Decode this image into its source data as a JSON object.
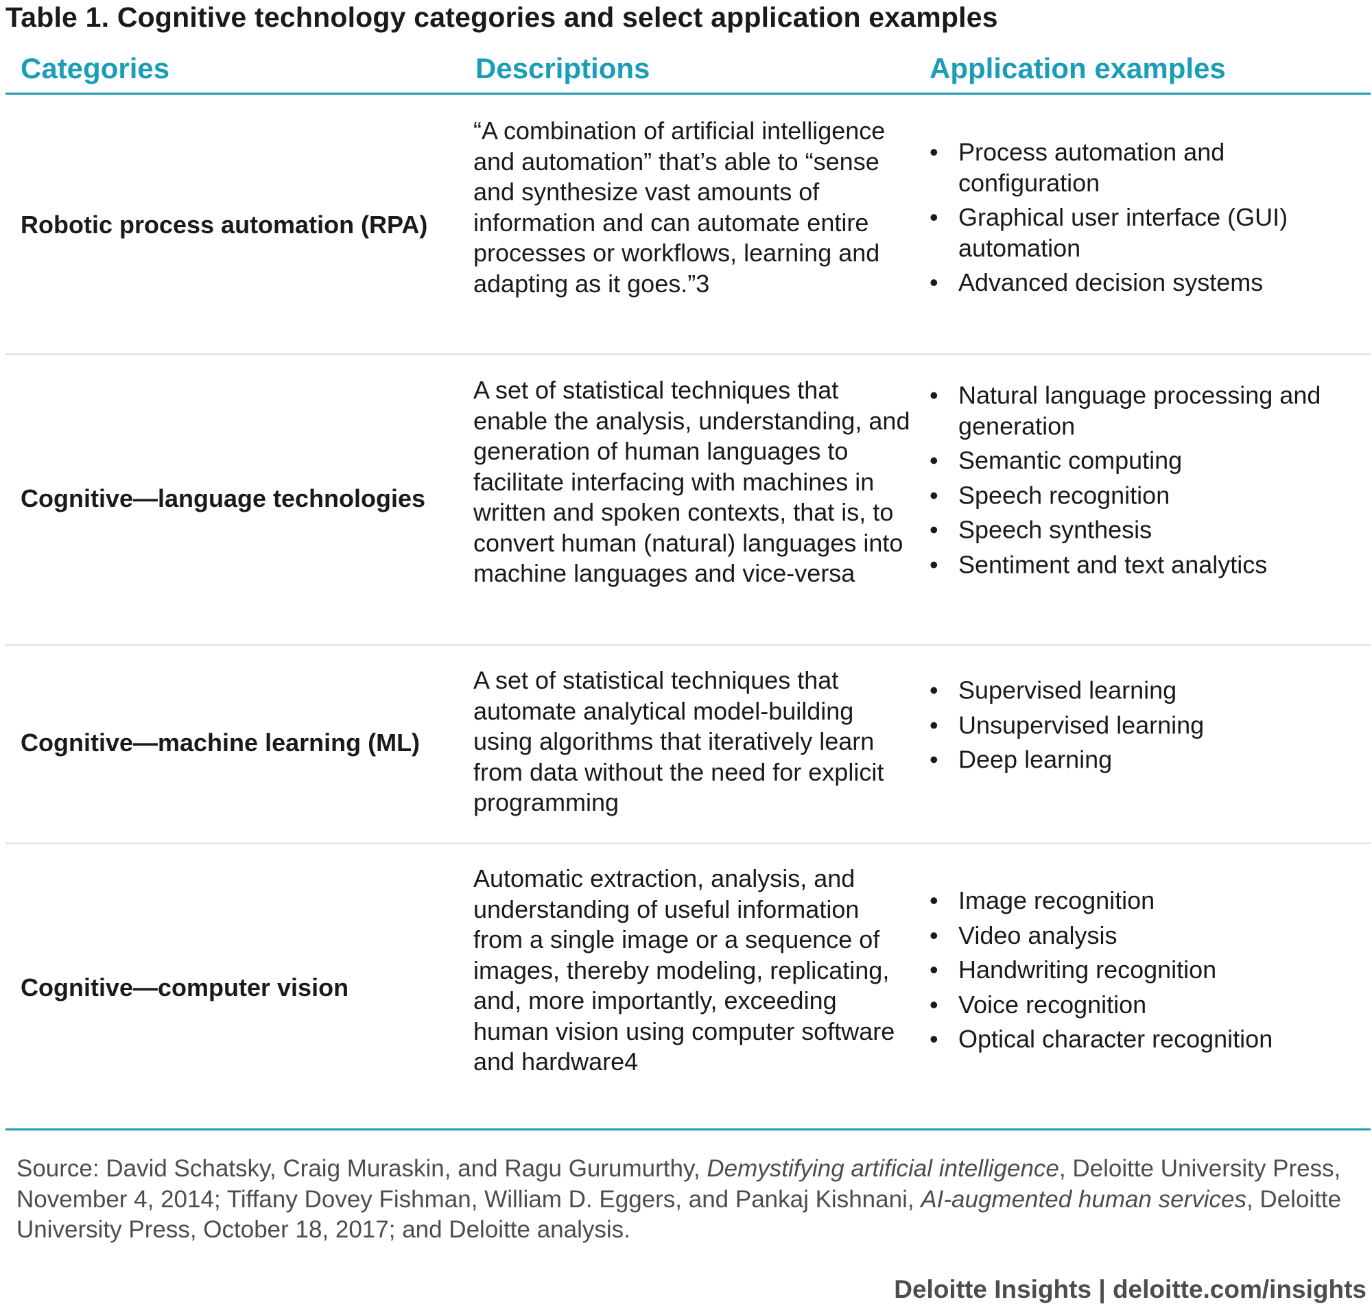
{
  "title": "Table 1. Cognitive technology categories and select application examples",
  "headers": [
    "Categories",
    "Descriptions",
    "Application examples"
  ],
  "rows": [
    {
      "category": "Robotic process automation (RPA)",
      "description": "“A combination of artificial intelligence and automation” that’s able to “sense and synthesize vast amounts of information and can automate entire processes or workflows, learning and adapting as it goes.”3",
      "apps": [
        "Process automation and configuration",
        "Graphical user interface (GUI) automation",
        "Advanced decision systems"
      ]
    },
    {
      "category": "Cognitive—language technologies",
      "description": "A set of statistical techniques that enable the analysis, understanding, and generation of human languages to facilitate interfacing with machines in written and spoken contexts, that is, to convert human (natural) languages into machine languages and vice-versa",
      "apps": [
        "Natural language processing and generation",
        "Semantic computing",
        "Speech recognition",
        "Speech synthesis",
        "Sentiment and text analytics"
      ]
    },
    {
      "category": "Cognitive—machine learning (ML)",
      "description": "A set of statistical techniques that automate analytical model-building using algorithms that iteratively learn from data without the need for explicit programming",
      "apps": [
        "Supervised learning",
        "Unsupervised learning",
        "Deep learning"
      ]
    },
    {
      "category": "Cognitive—computer vision",
      "description": "Automatic extraction, analysis, and understanding of useful information from a single image or a sequence of images, thereby modeling, replicating, and, more importantly, exceeding human vision using computer software and hardware4",
      "apps": [
        "Image recognition",
        "Video analysis",
        "Handwriting recognition",
        "Voice recognition",
        "Optical character recognition"
      ]
    }
  ],
  "source": {
    "prefix": "Source: David Schatsky, Craig Muraskin, and Ragu Gurumurthy, ",
    "title1": "Demystifying artificial intelligence",
    "mid": ", Deloitte University Press, November 4, 2014; Tiffany Dovey Fishman, William D. Eggers, and Pankaj Kishnani, ",
    "title2": "AI-augmented human services",
    "suffix": ", Deloitte University Press, October 18, 2017; and Deloitte analysis."
  },
  "brand": "Deloitte Insights | deloitte.com/insights",
  "colors": {
    "accent": "#1a9db6",
    "rule": "#e6e6e6",
    "muted": "#4d4d4d"
  },
  "bullet": "•"
}
